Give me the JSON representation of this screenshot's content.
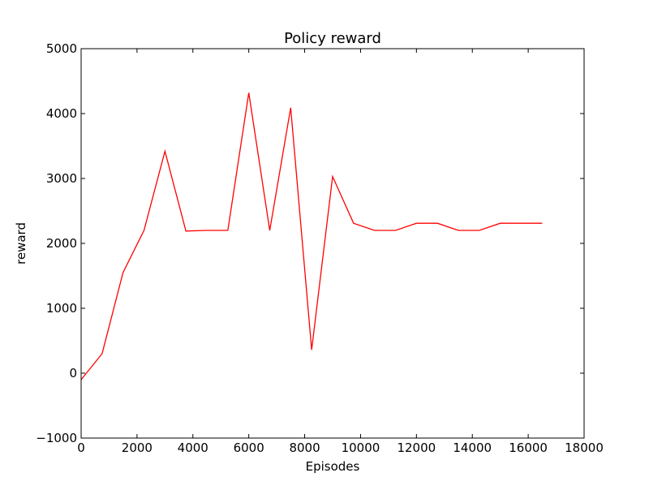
{
  "chart_data": {
    "type": "line",
    "title": "Policy reward",
    "xlabel": "Episodes",
    "ylabel": "reward",
    "xlim": [
      0,
      18000
    ],
    "ylim": [
      -1000,
      5000
    ],
    "xticks": [
      0,
      2000,
      4000,
      6000,
      8000,
      10000,
      12000,
      14000,
      16000,
      18000
    ],
    "yticks": [
      -1000,
      0,
      1000,
      2000,
      3000,
      4000,
      5000
    ],
    "xtick_labels": [
      "0",
      "2000",
      "4000",
      "6000",
      "8000",
      "10000",
      "12000",
      "14000",
      "16000",
      "18000"
    ],
    "ytick_labels": [
      "−1000",
      "0",
      "1000",
      "2000",
      "3000",
      "4000",
      "5000"
    ],
    "grid": false,
    "line_color": "#ff0000",
    "series": [
      {
        "x": [
          0,
          750,
          1500,
          2250,
          3000,
          3750,
          4500,
          5250,
          6000,
          6750,
          7500,
          8250,
          9000,
          9750,
          10500,
          11250,
          12000,
          12750,
          13500,
          14250,
          15000,
          15750,
          16500
        ],
        "y": [
          -100,
          300,
          1550,
          2200,
          3420,
          2190,
          2200,
          2200,
          4320,
          2200,
          4090,
          360,
          3030,
          2310,
          2200,
          2200,
          2310,
          2310,
          2200,
          2200,
          2310,
          2310,
          2310
        ]
      }
    ]
  }
}
